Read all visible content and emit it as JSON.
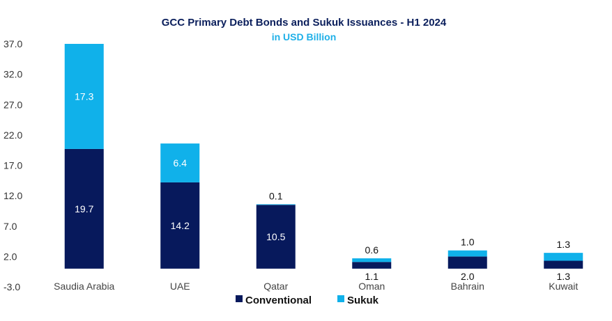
{
  "chart_data": {
    "type": "bar",
    "stacked": true,
    "title": "GCC Primary Debt Bonds and Sukuk Issuances - H1 2024",
    "subtitle": "in USD Billion",
    "categories": [
      "Saudia Arabia",
      "UAE",
      "Qatar",
      "Oman",
      "Bahrain",
      "Kuwait"
    ],
    "series": [
      {
        "name": "Conventional",
        "color": "#07195c",
        "values": [
          19.7,
          14.2,
          10.5,
          1.1,
          2.0,
          1.3
        ]
      },
      {
        "name": "Sukuk",
        "color": "#10b1ea",
        "values": [
          17.3,
          6.4,
          0.1,
          0.6,
          1.0,
          1.3
        ]
      }
    ],
    "value_labels": {
      "Conventional": [
        "19.7",
        "14.2",
        "10.5",
        "1.1",
        "2.0",
        "1.3"
      ],
      "Sukuk": [
        "17.3",
        "6.4",
        "0.1",
        "0.6",
        "1.0",
        "1.3"
      ]
    },
    "yticks": [
      "37.0",
      "32.0",
      "27.0",
      "22.0",
      "17.0",
      "12.0",
      "7.0",
      "2.0",
      "-3.0"
    ],
    "ylim": [
      -3.0,
      37.0
    ],
    "grid": false,
    "legend_position": "bottom",
    "legend": [
      "Conventional",
      "Sukuk"
    ]
  }
}
